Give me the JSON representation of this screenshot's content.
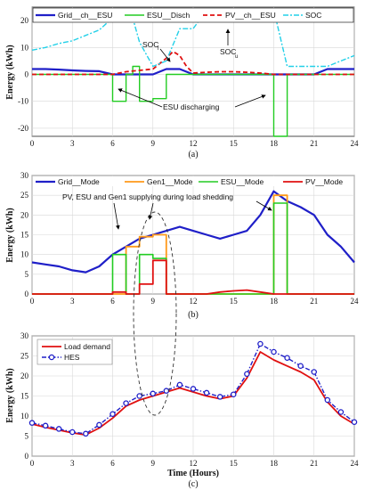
{
  "chart_data": [
    {
      "type": "line",
      "caption": "(a)",
      "xlabel": "",
      "ylabel": "Energy (kWh)",
      "xlim": [
        0,
        24
      ],
      "ylim": [
        -23,
        25
      ],
      "xticks": [
        0,
        3,
        6,
        9,
        12,
        15,
        18,
        21,
        24
      ],
      "yticks": [
        -20,
        -10,
        0,
        10,
        20
      ],
      "grid": true,
      "legend_position": "top",
      "series": [
        {
          "name": "Grid__ch__ESU",
          "color": "#1f1fc8",
          "style": "solid",
          "width": 2.2,
          "x": [
            0,
            1,
            2,
            3,
            4,
            5,
            6,
            7,
            7.5,
            8,
            9,
            10,
            11,
            12,
            13,
            14,
            15,
            16,
            17,
            18,
            19,
            20,
            21,
            22,
            23,
            24
          ],
          "y": [
            2,
            2,
            1.8,
            1.5,
            1.3,
            1.2,
            0,
            0,
            0,
            0,
            0,
            2,
            2,
            0,
            0,
            0,
            0,
            0,
            0,
            0,
            0,
            0,
            0,
            2,
            2,
            2
          ]
        },
        {
          "name": "ESU__Disch",
          "color": "#22cc22",
          "style": "solid",
          "width": 1.4,
          "x": [
            0,
            6,
            6,
            7,
            7,
            7.5,
            7.5,
            8,
            8,
            9,
            9,
            10,
            10,
            18,
            18,
            19,
            19,
            24
          ],
          "y": [
            0,
            0,
            -10,
            -10,
            0,
            0,
            3,
            3,
            -10,
            -10,
            -9,
            -9,
            0,
            0,
            -23,
            -23,
            0,
            0
          ]
        },
        {
          "name": "PV__ch__ESU",
          "color": "#e01010",
          "style": "dashed",
          "width": 1.8,
          "x": [
            0,
            6,
            6.5,
            7,
            8,
            9,
            10,
            10.5,
            11,
            11.5,
            12,
            13,
            14,
            15,
            16,
            17,
            18,
            24
          ],
          "y": [
            0,
            0,
            0.5,
            1,
            1.5,
            2,
            6,
            8.5,
            7,
            3,
            0.5,
            0.8,
            1,
            1,
            0.8,
            0.5,
            0,
            0
          ]
        },
        {
          "name": "SOC",
          "color": "#22d0e8",
          "style": "dashdot",
          "width": 1.4,
          "x": [
            0,
            1,
            2,
            3,
            4,
            5,
            6,
            7,
            7.5,
            8,
            9,
            10,
            11,
            12,
            13,
            14,
            15,
            16,
            17,
            18,
            19,
            20,
            21,
            22,
            23,
            24
          ],
          "y": [
            9,
            10,
            11.5,
            12.5,
            14.5,
            16.5,
            21,
            21,
            21,
            12,
            3,
            5,
            17,
            17,
            24,
            24,
            24,
            24,
            24,
            24,
            3,
            3,
            3,
            3,
            5,
            7
          ]
        }
      ],
      "annotations": [
        "SOC",
        "l",
        "SOC",
        "u",
        "ESU discharging"
      ]
    },
    {
      "type": "line",
      "caption": "(b)",
      "xlabel": "",
      "ylabel": "Energy (kWh)",
      "xlim": [
        0,
        24
      ],
      "ylim": [
        0,
        30
      ],
      "xticks": [
        0,
        3,
        6,
        9,
        12,
        15,
        18,
        21,
        24
      ],
      "yticks": [
        0,
        5,
        10,
        15,
        20,
        25,
        30
      ],
      "grid": true,
      "legend_position": "top",
      "series": [
        {
          "name": "Grid__Mode",
          "color": "#1f1fc8",
          "style": "solid",
          "width": 2.2,
          "x": [
            0,
            1,
            2,
            3,
            4,
            5,
            6,
            7,
            8,
            9,
            10,
            11,
            12,
            13,
            14,
            15,
            16,
            17,
            18,
            19,
            20,
            21,
            22,
            23,
            24
          ],
          "y": [
            8,
            7.5,
            7,
            6,
            5.5,
            7,
            10,
            12,
            14,
            15,
            16,
            17,
            16,
            15,
            14,
            15,
            16,
            20,
            26,
            23.5,
            22,
            20,
            15,
            12,
            8
          ]
        },
        {
          "name": "Gen1__Mode",
          "color": "#ff9a1a",
          "style": "solid",
          "width": 1.8,
          "x": [
            0,
            7,
            7,
            8,
            8,
            9,
            9,
            10,
            10,
            18,
            18,
            19,
            19,
            24
          ],
          "y": [
            0,
            0,
            12,
            12,
            14.5,
            14.5,
            15,
            15,
            0,
            0,
            25,
            25,
            0,
            0
          ]
        },
        {
          "name": "ESU__Mode",
          "color": "#22cc22",
          "style": "solid",
          "width": 1.6,
          "x": [
            0,
            6,
            6,
            7,
            7,
            8,
            8,
            9,
            9,
            10,
            10,
            18,
            18,
            19,
            19,
            24
          ],
          "y": [
            0,
            0,
            10,
            10,
            0,
            0,
            10,
            10,
            9,
            9,
            0,
            0,
            23,
            23,
            0,
            0
          ]
        },
        {
          "name": "PV__Mode",
          "color": "#e01010",
          "style": "solid",
          "width": 1.8,
          "x": [
            0,
            6,
            6,
            7,
            7,
            8,
            8,
            9,
            9,
            10,
            10,
            13,
            14,
            15,
            16,
            17,
            18,
            24
          ],
          "y": [
            0,
            0,
            0.5,
            0.5,
            0,
            0,
            2.5,
            2.5,
            8.5,
            8.5,
            0,
            0,
            0.5,
            0.8,
            1,
            0.5,
            0,
            0
          ]
        }
      ],
      "annotations": [
        "PV, ESU and Gen1 supplying during load shedding"
      ]
    },
    {
      "type": "line",
      "caption": "(c)",
      "xlabel": "Time (Hours)",
      "ylabel": "Energy (kWh)",
      "xlim": [
        0,
        24
      ],
      "ylim": [
        0,
        30
      ],
      "xticks": [
        0,
        3,
        6,
        9,
        12,
        15,
        18,
        21,
        24
      ],
      "yticks": [
        0,
        5,
        10,
        15,
        20,
        25,
        30
      ],
      "grid": true,
      "legend_position": "top-left",
      "series": [
        {
          "name": "Load demand",
          "color": "#e01010",
          "style": "solid",
          "width": 1.8,
          "x": [
            0,
            1,
            2,
            3,
            4,
            5,
            6,
            7,
            8,
            9,
            10,
            11,
            12,
            13,
            14,
            15,
            16,
            17,
            18,
            19,
            20,
            21,
            22,
            23,
            24
          ],
          "y": [
            8,
            7.2,
            6.5,
            5.8,
            5.3,
            7,
            9.5,
            12.5,
            14,
            15,
            16,
            17,
            16,
            15,
            14.3,
            15,
            19.5,
            26,
            24,
            22.5,
            21,
            19,
            13.5,
            10,
            8
          ]
        },
        {
          "name": "HES",
          "color": "#1f1fc8",
          "style": "dashdot-marker",
          "width": 1.4,
          "x": [
            0,
            1,
            2,
            3,
            4,
            5,
            6,
            7,
            8,
            9,
            10,
            11,
            12,
            13,
            14,
            15,
            16,
            17,
            18,
            19,
            20,
            21,
            22,
            23,
            24
          ],
          "y": [
            8.3,
            7.6,
            6.8,
            6,
            5.6,
            7.8,
            10.5,
            13.2,
            15,
            15.6,
            16.3,
            17.8,
            16.8,
            15.8,
            14.8,
            15.4,
            20.5,
            28,
            26,
            24.5,
            22.5,
            21,
            14,
            11,
            8.5
          ]
        }
      ],
      "annotations": []
    }
  ]
}
